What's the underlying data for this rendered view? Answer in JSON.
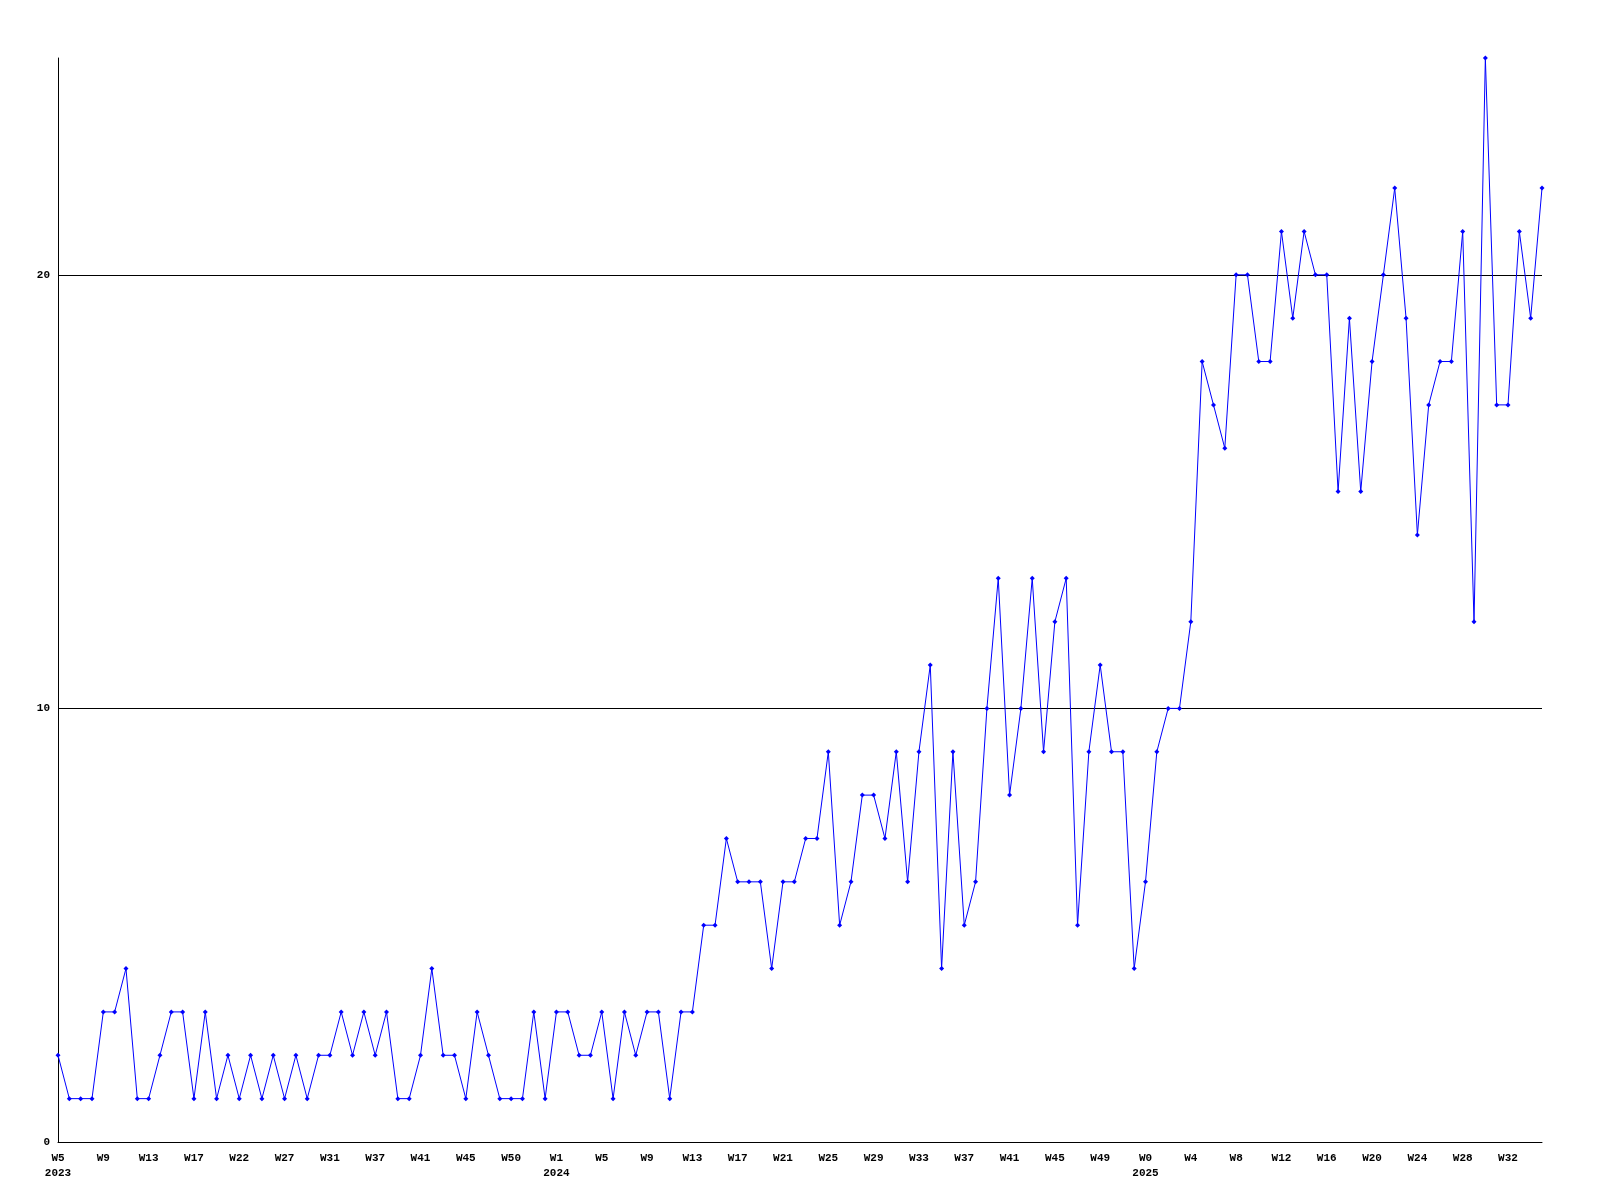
{
  "chart_data": {
    "type": "line",
    "categories": [
      "W5\n2023",
      null,
      null,
      null,
      "W9",
      null,
      null,
      null,
      "W13",
      null,
      null,
      null,
      "W17",
      null,
      null,
      null,
      "W22",
      null,
      null,
      null,
      "W27",
      null,
      null,
      null,
      "W31",
      null,
      null,
      null,
      "W37",
      null,
      null,
      null,
      "W41",
      null,
      null,
      null,
      "W45",
      null,
      null,
      null,
      "W50",
      null,
      null,
      null,
      "W1\n2024",
      null,
      null,
      null,
      "W5",
      null,
      null,
      null,
      "W9",
      null,
      null,
      null,
      "W13",
      null,
      null,
      null,
      "W17",
      null,
      null,
      null,
      "W21",
      null,
      null,
      null,
      "W25",
      null,
      null,
      null,
      "W29",
      null,
      null,
      null,
      "W33",
      null,
      null,
      null,
      "W37",
      null,
      null,
      null,
      "W41",
      null,
      null,
      null,
      "W45",
      null,
      null,
      null,
      "W49",
      null,
      null,
      null,
      "W0\n2025",
      null,
      null,
      null,
      "W4",
      null,
      null,
      null,
      "W8",
      null,
      null,
      null,
      "W12",
      null,
      null,
      null,
      "W16",
      null,
      null,
      null,
      "W20",
      null,
      null,
      null,
      "W24",
      null,
      null,
      null,
      "W28",
      null,
      null,
      null,
      "W32",
      null,
      null,
      null
    ],
    "series": [
      {
        "color": "#0000ff",
        "values": [
          2,
          1,
          1,
          1,
          3,
          3,
          4,
          1,
          1,
          2,
          3,
          3,
          1,
          3,
          1,
          2,
          1,
          2,
          1,
          2,
          1,
          2,
          1,
          2,
          2,
          3,
          2,
          3,
          2,
          3,
          1,
          1,
          2,
          4,
          2,
          2,
          1,
          3,
          2,
          1,
          1,
          1,
          3,
          1,
          3,
          3,
          2,
          2,
          3,
          1,
          3,
          2,
          3,
          3,
          1,
          3,
          3,
          5,
          5,
          7,
          6,
          6,
          6,
          4,
          6,
          6,
          7,
          7,
          9,
          5,
          6,
          8,
          8,
          7,
          9,
          6,
          9,
          11,
          4,
          9,
          5,
          6,
          10,
          13,
          8,
          10,
          13,
          9,
          12,
          13,
          5,
          9,
          11,
          9,
          9,
          4,
          6,
          9,
          10,
          10,
          12,
          18,
          17,
          16,
          20,
          20,
          18,
          18,
          21,
          19,
          21,
          20,
          20,
          15,
          19,
          15,
          18,
          20,
          22,
          19,
          14,
          17,
          18,
          18,
          21,
          12,
          25,
          17,
          17,
          21,
          19,
          22
        ]
      }
    ],
    "ylim": [
      0,
      25
    ],
    "yticks": [
      0,
      10,
      20
    ],
    "grid": "y",
    "marker": "diamond",
    "line_style": "solid"
  }
}
